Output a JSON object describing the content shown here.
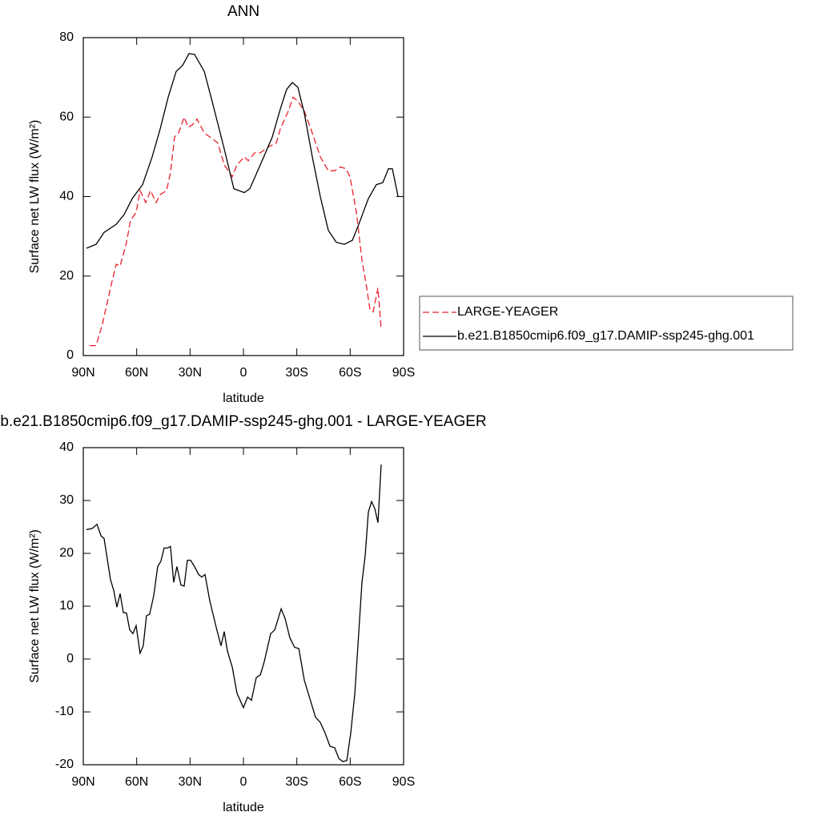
{
  "chart_data": [
    {
      "type": "line",
      "title": "ANN",
      "xlabel": "latitude",
      "ylabel": "Surface net LW flux (W/m²)",
      "xlim": [
        90,
        -90
      ],
      "xticks": [
        {
          "value": 90,
          "label": "90N"
        },
        {
          "value": 60,
          "label": "60N"
        },
        {
          "value": 30,
          "label": "30N"
        },
        0,
        {
          "value": -30,
          "label": "30S"
        },
        {
          "value": -60,
          "label": "60S"
        },
        {
          "value": -90,
          "label": "90S"
        }
      ],
      "ylim": [
        0,
        80
      ],
      "yticks": [
        0,
        20,
        40,
        60,
        80
      ],
      "legend": "right",
      "series": [
        {
          "name": "LARGE-YEAGER",
          "color": "#e8212a",
          "dashed": true,
          "x": [
            86.4,
            82.8,
            79.2,
            74.7,
            71.5,
            69.3,
            65.7,
            63.5,
            60.3,
            58.1,
            54.9,
            52.2,
            49.1,
            46.8,
            43.2,
            41,
            38.7,
            36.5,
            33.3,
            31.1,
            28.8,
            26.1,
            22,
            18.9,
            14.4,
            10.8,
            6.3,
            3.6,
            -0.5,
            -2.7,
            -6.3,
            -9.5,
            -14,
            -18.5,
            -20.7,
            -25.2,
            -27.9,
            -30.6,
            -34.2,
            -38.7,
            -43.2,
            -47.7,
            -51.3,
            -54.5,
            -57.6,
            -59.9,
            -63.5,
            -66.6,
            -69.3,
            -71.1,
            -72.9,
            -75.6,
            -77.4
          ],
          "values": [
            2.5,
            2.5,
            8,
            17,
            23,
            22.5,
            28.5,
            34,
            36,
            41.5,
            38.5,
            41.5,
            38.5,
            40.5,
            41.5,
            46,
            55,
            56,
            60,
            57.5,
            58,
            59.5,
            56,
            55,
            53.5,
            48,
            45,
            48,
            50,
            49,
            51,
            51,
            52.5,
            53.5,
            57,
            61.5,
            65,
            64,
            61.5,
            56,
            50,
            46.5,
            46.5,
            47.5,
            47,
            45,
            36,
            24,
            17,
            11.5,
            11,
            17,
            6.5
          ]
        },
        {
          "name": "b.e21.B1850cmip6.f09_g17.DAMIP-ssp245-ghg.001",
          "color": "#000000",
          "dashed": false,
          "x": [
            88.2,
            82.8,
            78.3,
            71.5,
            67,
            62.5,
            56.7,
            51.3,
            46.8,
            42.3,
            37.8,
            34.2,
            30.6,
            27.5,
            22,
            17.6,
            10.8,
            5.4,
            -0.5,
            -3.6,
            -9.5,
            -16.2,
            -20.7,
            -24.3,
            -27.5,
            -30.6,
            -34.2,
            -38.7,
            -43.2,
            -47.7,
            -52.2,
            -56.7,
            -61.2,
            -64.8,
            -70.2,
            -74.7,
            -78.3,
            -81.5,
            -83.7,
            -86.9
          ],
          "values": [
            27,
            28,
            31,
            33,
            35.5,
            39.5,
            43,
            50,
            57,
            65,
            71.5,
            73,
            76,
            75.8,
            71.5,
            64,
            52,
            42,
            41,
            42,
            48,
            55,
            62,
            67,
            68.7,
            67.5,
            61,
            50,
            40,
            31.5,
            28.5,
            28,
            29,
            33,
            39.5,
            43,
            43.5,
            47,
            47,
            40
          ]
        }
      ]
    },
    {
      "type": "line",
      "title": "b.e21.B1850cmip6.f09_g17.DAMIP-ssp245-ghg.001 - LARGE-YEAGER",
      "xlabel": "latitude",
      "ylabel": "Surface net LW flux (W/m²)",
      "xlim": [
        90,
        -90
      ],
      "xticks": [
        {
          "value": 90,
          "label": "90N"
        },
        {
          "value": 60,
          "label": "60N"
        },
        {
          "value": 30,
          "label": "30N"
        },
        0,
        {
          "value": -30,
          "label": "30S"
        },
        {
          "value": -60,
          "label": "60S"
        },
        {
          "value": -90,
          "label": "90S"
        }
      ],
      "ylim": [
        -20,
        40
      ],
      "yticks": [
        {
          "value": -20,
          "label": "-20"
        },
        {
          "value": -10,
          "label": "-10"
        },
        0,
        10,
        20,
        30,
        40
      ],
      "series": [
        {
          "color": "#000000",
          "dashed": false,
          "x": [
            88.2,
            85,
            82.3,
            80,
            78.3,
            74.7,
            72.9,
            71.1,
            69.3,
            67.5,
            65.7,
            63.9,
            62.1,
            60.3,
            58.1,
            56.3,
            54.5,
            52.7,
            50.4,
            48.2,
            46.4,
            44.6,
            42.8,
            41,
            39.2,
            37.4,
            35.1,
            33.3,
            31.5,
            29.7,
            27.5,
            25.2,
            23.4,
            21.6,
            18.9,
            15.3,
            12.6,
            10.8,
            9,
            6.3,
            3.6,
            0,
            -2.3,
            -4.5,
            -7.2,
            -9.5,
            -11.7,
            -15.3,
            -17.6,
            -21.2,
            -23.4,
            -26.1,
            -28.8,
            -31.1,
            -34.2,
            -37.8,
            -40.5,
            -43.2,
            -45.9,
            -48.6,
            -51.3,
            -53.6,
            -55.8,
            -58.1,
            -60.3,
            -62.6,
            -64.8,
            -66.6,
            -68.4,
            -70.2,
            -72,
            -73.8,
            -75.6,
            -77.4
          ],
          "values": [
            24.5,
            24.7,
            25.5,
            23.3,
            22.8,
            15,
            13,
            9.8,
            12.4,
            8.8,
            8.7,
            5.5,
            4.8,
            6.3,
            1.1,
            2.5,
            8.2,
            8.5,
            12,
            17.5,
            18.5,
            21,
            21,
            21.3,
            14.5,
            17.5,
            14,
            13.8,
            18.7,
            18.7,
            17.5,
            16,
            15.5,
            16,
            11,
            6,
            2.5,
            5.2,
            1.5,
            -1.5,
            -6.5,
            -9.2,
            -7.2,
            -7.8,
            -3.5,
            -3,
            -0.5,
            4.8,
            5.5,
            9.5,
            7.7,
            4,
            2.2,
            2,
            -4,
            -8,
            -11,
            -12,
            -14,
            -16.5,
            -16.8,
            -18.8,
            -19.4,
            -19.2,
            -14,
            -6.5,
            5,
            14.5,
            19.5,
            27.8,
            29.8,
            28.5,
            25.8,
            36.8
          ]
        }
      ]
    }
  ]
}
